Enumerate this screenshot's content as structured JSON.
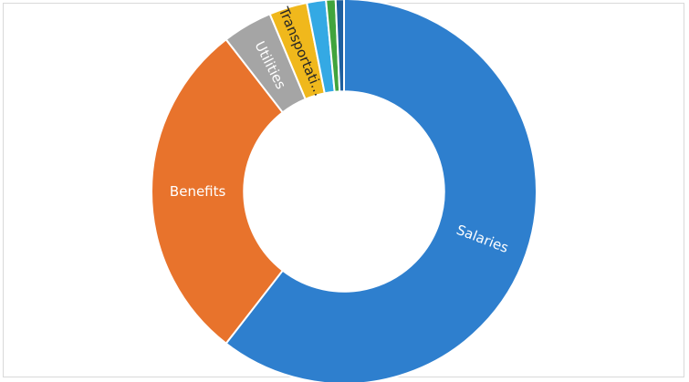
{
  "chart_data": {
    "type": "pie",
    "title": "",
    "labels": [
      "Salaries",
      "Benefits",
      "Utilities",
      "Transportati...",
      "",
      "",
      ""
    ],
    "values": [
      60.5,
      29.0,
      4.2,
      3.2,
      1.6,
      0.8,
      0.7
    ],
    "colors": [
      "#2e7fce",
      "#e8732c",
      "#a5a5a5",
      "#f0b81c",
      "#34a9e4",
      "#41a43d",
      "#1f5f9e"
    ],
    "inner_radius_ratio": 0.52,
    "start_angle_deg": 0,
    "legend": "none"
  }
}
